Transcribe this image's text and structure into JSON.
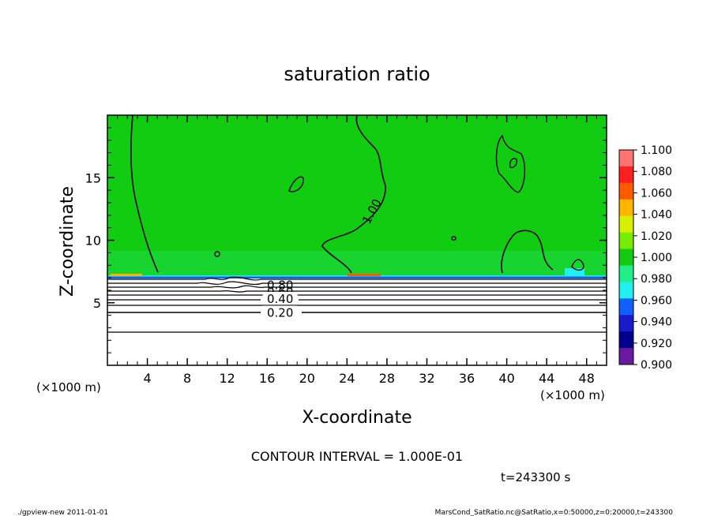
{
  "chart_data": {
    "type": "heatmap",
    "title": "saturation ratio",
    "xlabel": "X-coordinate",
    "ylabel": "Z-coordinate",
    "x_unit": "(×1000 m)",
    "x_unit_right": "(×1000 m)",
    "xlim": [
      0,
      50
    ],
    "ylim": [
      0,
      20
    ],
    "x_ticks": [
      "4",
      "8",
      "12",
      "16",
      "20",
      "24",
      "28",
      "32",
      "36",
      "40",
      "44",
      "48"
    ],
    "y_ticks": [
      "5",
      "10",
      "15"
    ],
    "contour_labels": [
      {
        "text": "1.00",
        "x": 26.5,
        "z": 12.3
      },
      {
        "text": "0.80",
        "x": 17.3,
        "z": 6.4
      },
      {
        "text": "0.60",
        "x": 17.3,
        "z": 5.9
      },
      {
        "text": "0.40",
        "x": 17.3,
        "z": 5.3
      },
      {
        "text": "0.20",
        "x": 17.3,
        "z": 4.2
      }
    ],
    "contour_interval_label": "CONTOUR INTERVAL = 1.000E-01",
    "time_label": "t=243300 s",
    "colorbar": {
      "levels": [
        "1.100",
        "1.080",
        "1.060",
        "1.040",
        "1.020",
        "1.000",
        "0.980",
        "0.960",
        "0.940",
        "0.920",
        "0.900"
      ],
      "colors": [
        "#ff7373",
        "#ff1f1f",
        "#ff5a00",
        "#ffb400",
        "#d7f000",
        "#77ec00",
        "#11cc11",
        "#22ee88",
        "#22f0f0",
        "#1060ff",
        "#1a1acc",
        "#00008c",
        "#6a1aa0"
      ]
    },
    "field": {
      "upper_value_color": "#11cc11",
      "lower_value_color": "#ffffff",
      "transition_z": 7.0
    }
  },
  "footer": {
    "left": "./gpview-new   2011-01-01",
    "right": "MarsCond_SatRatio.nc@SatRatio,x=0:50000,z=0:20000,t=243300"
  }
}
